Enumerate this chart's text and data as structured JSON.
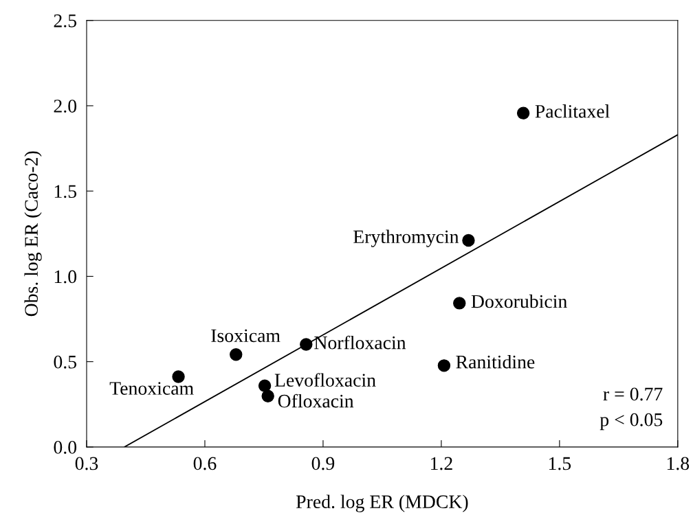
{
  "chart_data": {
    "type": "scatter",
    "xlabel": "Pred. log ER (MDCK)",
    "ylabel": "Obs. log ER (Caco-2)",
    "xlim": [
      0.3,
      1.8
    ],
    "xticks": [
      {
        "value": 0.3,
        "label": "0.3"
      },
      {
        "value": 0.6,
        "label": "0.6"
      },
      {
        "value": 0.9,
        "label": "0.9"
      },
      {
        "value": 1.2,
        "label": "1.2"
      },
      {
        "value": 1.5,
        "label": "1.5"
      },
      {
        "value": 1.8,
        "label": "1.8"
      }
    ],
    "ylim": [
      0,
      2.5
    ],
    "yticks": [
      {
        "value": 0,
        "label": "0.0"
      },
      {
        "value": 0.5,
        "label": "0.5"
      },
      {
        "value": 1.0,
        "label": "1.0"
      },
      {
        "value": 1.5,
        "label": "1.5"
      },
      {
        "value": 2.0,
        "label": "2.0"
      },
      {
        "value": 2.5,
        "label": "2.5"
      }
    ],
    "grid": false,
    "legend": false,
    "series": [
      {
        "marker": "circle",
        "color": "#000000",
        "x": [
          1.408,
          1.269,
          1.246,
          1.207,
          0.857,
          0.679,
          0.533,
          0.752,
          0.76
        ],
        "values": [
          1.957,
          1.211,
          0.843,
          0.477,
          0.601,
          0.542,
          0.412,
          0.359,
          0.298
        ]
      },
      {
        "type": "line",
        "color": "#000000",
        "line_style": "solid",
        "x": [
          0.396,
          1.8
        ],
        "values": [
          0,
          1.83
        ]
      }
    ],
    "annotations": [
      {
        "text": "Paclitaxel",
        "x": 1.408,
        "y": 1.957
      },
      {
        "text": "Erythromycin",
        "x": 1.269,
        "y": 1.211
      },
      {
        "text": "Doxorubicin",
        "x": 1.246,
        "y": 0.843
      },
      {
        "text": "Ranitidine",
        "x": 1.207,
        "y": 0.477
      },
      {
        "text": "Norfloxacin",
        "x": 0.857,
        "y": 0.601
      },
      {
        "text": "Isoxicam",
        "x": 0.679,
        "y": 0.542
      },
      {
        "text": "Tenoxicam",
        "x": 0.533,
        "y": 0.412
      },
      {
        "text": "Levofloxacin",
        "x": 0.752,
        "y": 0.359
      },
      {
        "text": "Ofloxacin",
        "x": 0.76,
        "y": 0.298
      },
      "r = 0.77",
      "p < 0.05"
    ]
  }
}
